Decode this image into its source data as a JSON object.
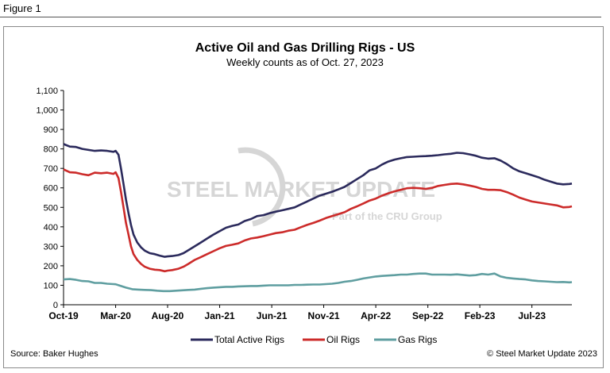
{
  "figure_label": "Figure  1",
  "source": "Source: Baker Hughes",
  "copyright": "© Steel Market Update 2023",
  "watermark": {
    "brand": "STEEL MARKET UPDATE",
    "tagline": "Part of the CRU Group"
  },
  "colors": {
    "total": "#2b2a5c",
    "oil": "#cc2b2a",
    "gas": "#5f9ea0",
    "axis": "#000000",
    "watermark": "#d6d6d6"
  },
  "chart_data": {
    "type": "line",
    "title": "Active Oil and Gas Drilling Rigs - US",
    "subtitle": "Weekly counts as of Oct. 27, 2023",
    "xlabel": "",
    "ylabel": "",
    "ylim": [
      0,
      1100
    ],
    "yticks": [
      0,
      100,
      200,
      300,
      400,
      500,
      600,
      700,
      800,
      900,
      1000,
      1100
    ],
    "ytick_labels": [
      "0",
      "100",
      "200",
      "300",
      "400",
      "500",
      "600",
      "700",
      "800",
      "900",
      "1,000",
      "1,100"
    ],
    "xlim": [
      2019.75,
      2023.82
    ],
    "xticks": [
      {
        "label": "Oct-19",
        "x": 2019.75
      },
      {
        "label": "Mar-20",
        "x": 2020.167
      },
      {
        "label": "Aug-20",
        "x": 2020.583
      },
      {
        "label": "Jan-21",
        "x": 2021.0
      },
      {
        "label": "Jun-21",
        "x": 2021.417
      },
      {
        "label": "Nov-21",
        "x": 2021.833
      },
      {
        "label": "Apr-22",
        "x": 2022.25
      },
      {
        "label": "Sep-22",
        "x": 2022.667
      },
      {
        "label": "Feb-23",
        "x": 2023.083
      },
      {
        "label": "Jul-23",
        "x": 2023.5
      }
    ],
    "grid": false,
    "legend": "bottom-center",
    "series": [
      {
        "name": "Total Active Rigs",
        "key": "total",
        "points": [
          [
            2019.75,
            825
          ],
          [
            2019.8,
            812
          ],
          [
            2019.85,
            810
          ],
          [
            2019.9,
            800
          ],
          [
            2019.95,
            795
          ],
          [
            2020.0,
            790
          ],
          [
            2020.05,
            792
          ],
          [
            2020.1,
            790
          ],
          [
            2020.15,
            785
          ],
          [
            2020.167,
            790
          ],
          [
            2020.19,
            770
          ],
          [
            2020.21,
            700
          ],
          [
            2020.23,
            620
          ],
          [
            2020.25,
            540
          ],
          [
            2020.27,
            470
          ],
          [
            2020.29,
            410
          ],
          [
            2020.31,
            360
          ],
          [
            2020.34,
            320
          ],
          [
            2020.37,
            295
          ],
          [
            2020.4,
            278
          ],
          [
            2020.44,
            265
          ],
          [
            2020.48,
            260
          ],
          [
            2020.52,
            252
          ],
          [
            2020.56,
            246
          ],
          [
            2020.583,
            248
          ],
          [
            2020.62,
            250
          ],
          [
            2020.67,
            255
          ],
          [
            2020.71,
            265
          ],
          [
            2020.75,
            280
          ],
          [
            2020.8,
            300
          ],
          [
            2020.85,
            320
          ],
          [
            2020.9,
            340
          ],
          [
            2020.95,
            360
          ],
          [
            2021.0,
            378
          ],
          [
            2021.05,
            395
          ],
          [
            2021.1,
            405
          ],
          [
            2021.15,
            412
          ],
          [
            2021.2,
            430
          ],
          [
            2021.25,
            440
          ],
          [
            2021.3,
            455
          ],
          [
            2021.35,
            460
          ],
          [
            2021.4,
            470
          ],
          [
            2021.45,
            478
          ],
          [
            2021.5,
            485
          ],
          [
            2021.55,
            492
          ],
          [
            2021.6,
            500
          ],
          [
            2021.65,
            515
          ],
          [
            2021.7,
            530
          ],
          [
            2021.75,
            545
          ],
          [
            2021.8,
            560
          ],
          [
            2021.85,
            570
          ],
          [
            2021.9,
            580
          ],
          [
            2021.95,
            592
          ],
          [
            2022.0,
            605
          ],
          [
            2022.05,
            625
          ],
          [
            2022.1,
            645
          ],
          [
            2022.15,
            665
          ],
          [
            2022.2,
            690
          ],
          [
            2022.25,
            700
          ],
          [
            2022.3,
            720
          ],
          [
            2022.35,
            735
          ],
          [
            2022.4,
            745
          ],
          [
            2022.45,
            752
          ],
          [
            2022.5,
            758
          ],
          [
            2022.55,
            760
          ],
          [
            2022.6,
            762
          ],
          [
            2022.65,
            763
          ],
          [
            2022.7,
            765
          ],
          [
            2022.75,
            768
          ],
          [
            2022.8,
            772
          ],
          [
            2022.85,
            775
          ],
          [
            2022.9,
            780
          ],
          [
            2022.95,
            778
          ],
          [
            2023.0,
            772
          ],
          [
            2023.05,
            765
          ],
          [
            2023.1,
            755
          ],
          [
            2023.15,
            750
          ],
          [
            2023.2,
            752
          ],
          [
            2023.25,
            740
          ],
          [
            2023.3,
            722
          ],
          [
            2023.35,
            700
          ],
          [
            2023.4,
            685
          ],
          [
            2023.45,
            675
          ],
          [
            2023.5,
            665
          ],
          [
            2023.55,
            655
          ],
          [
            2023.6,
            642
          ],
          [
            2023.65,
            632
          ],
          [
            2023.7,
            622
          ],
          [
            2023.75,
            618
          ],
          [
            2023.8,
            620
          ],
          [
            2023.82,
            622
          ]
        ]
      },
      {
        "name": "Oil Rigs",
        "key": "oil",
        "points": [
          [
            2019.75,
            695
          ],
          [
            2019.8,
            680
          ],
          [
            2019.85,
            678
          ],
          [
            2019.9,
            670
          ],
          [
            2019.95,
            665
          ],
          [
            2020.0,
            678
          ],
          [
            2020.05,
            675
          ],
          [
            2020.1,
            678
          ],
          [
            2020.15,
            672
          ],
          [
            2020.167,
            680
          ],
          [
            2020.19,
            650
          ],
          [
            2020.21,
            580
          ],
          [
            2020.23,
            500
          ],
          [
            2020.25,
            420
          ],
          [
            2020.27,
            360
          ],
          [
            2020.29,
            300
          ],
          [
            2020.31,
            260
          ],
          [
            2020.34,
            230
          ],
          [
            2020.37,
            210
          ],
          [
            2020.4,
            195
          ],
          [
            2020.44,
            185
          ],
          [
            2020.48,
            180
          ],
          [
            2020.52,
            178
          ],
          [
            2020.56,
            172
          ],
          [
            2020.583,
            175
          ],
          [
            2020.62,
            178
          ],
          [
            2020.67,
            185
          ],
          [
            2020.71,
            195
          ],
          [
            2020.75,
            210
          ],
          [
            2020.8,
            230
          ],
          [
            2020.85,
            245
          ],
          [
            2020.9,
            260
          ],
          [
            2020.95,
            275
          ],
          [
            2021.0,
            290
          ],
          [
            2021.05,
            302
          ],
          [
            2021.1,
            308
          ],
          [
            2021.15,
            315
          ],
          [
            2021.2,
            330
          ],
          [
            2021.25,
            340
          ],
          [
            2021.3,
            345
          ],
          [
            2021.35,
            352
          ],
          [
            2021.4,
            360
          ],
          [
            2021.45,
            368
          ],
          [
            2021.5,
            372
          ],
          [
            2021.55,
            380
          ],
          [
            2021.6,
            385
          ],
          [
            2021.65,
            398
          ],
          [
            2021.7,
            410
          ],
          [
            2021.75,
            420
          ],
          [
            2021.8,
            432
          ],
          [
            2021.85,
            445
          ],
          [
            2021.9,
            455
          ],
          [
            2021.95,
            465
          ],
          [
            2022.0,
            475
          ],
          [
            2022.05,
            492
          ],
          [
            2022.1,
            505
          ],
          [
            2022.15,
            520
          ],
          [
            2022.2,
            535
          ],
          [
            2022.25,
            545
          ],
          [
            2022.3,
            560
          ],
          [
            2022.35,
            572
          ],
          [
            2022.4,
            582
          ],
          [
            2022.45,
            590
          ],
          [
            2022.5,
            598
          ],
          [
            2022.55,
            600
          ],
          [
            2022.6,
            598
          ],
          [
            2022.65,
            595
          ],
          [
            2022.7,
            600
          ],
          [
            2022.75,
            610
          ],
          [
            2022.8,
            615
          ],
          [
            2022.85,
            620
          ],
          [
            2022.9,
            622
          ],
          [
            2022.95,
            618
          ],
          [
            2023.0,
            612
          ],
          [
            2023.05,
            605
          ],
          [
            2023.1,
            595
          ],
          [
            2023.15,
            590
          ],
          [
            2023.2,
            590
          ],
          [
            2023.25,
            588
          ],
          [
            2023.3,
            578
          ],
          [
            2023.35,
            565
          ],
          [
            2023.4,
            550
          ],
          [
            2023.45,
            540
          ],
          [
            2023.5,
            530
          ],
          [
            2023.55,
            525
          ],
          [
            2023.6,
            520
          ],
          [
            2023.65,
            515
          ],
          [
            2023.7,
            510
          ],
          [
            2023.75,
            500
          ],
          [
            2023.8,
            502
          ],
          [
            2023.82,
            505
          ]
        ]
      },
      {
        "name": "Gas Rigs",
        "key": "gas",
        "points": [
          [
            2019.75,
            130
          ],
          [
            2019.8,
            132
          ],
          [
            2019.85,
            128
          ],
          [
            2019.9,
            122
          ],
          [
            2019.95,
            120
          ],
          [
            2020.0,
            112
          ],
          [
            2020.05,
            112
          ],
          [
            2020.1,
            108
          ],
          [
            2020.15,
            106
          ],
          [
            2020.167,
            105
          ],
          [
            2020.2,
            98
          ],
          [
            2020.25,
            88
          ],
          [
            2020.3,
            80
          ],
          [
            2020.35,
            78
          ],
          [
            2020.4,
            76
          ],
          [
            2020.45,
            75
          ],
          [
            2020.5,
            72
          ],
          [
            2020.55,
            70
          ],
          [
            2020.6,
            70
          ],
          [
            2020.65,
            72
          ],
          [
            2020.7,
            74
          ],
          [
            2020.75,
            76
          ],
          [
            2020.8,
            78
          ],
          [
            2020.85,
            82
          ],
          [
            2020.9,
            85
          ],
          [
            2020.95,
            88
          ],
          [
            2021.0,
            90
          ],
          [
            2021.05,
            92
          ],
          [
            2021.1,
            92
          ],
          [
            2021.15,
            94
          ],
          [
            2021.2,
            95
          ],
          [
            2021.25,
            96
          ],
          [
            2021.3,
            96
          ],
          [
            2021.35,
            98
          ],
          [
            2021.4,
            100
          ],
          [
            2021.45,
            100
          ],
          [
            2021.5,
            100
          ],
          [
            2021.55,
            100
          ],
          [
            2021.6,
            102
          ],
          [
            2021.65,
            102
          ],
          [
            2021.7,
            103
          ],
          [
            2021.75,
            104
          ],
          [
            2021.8,
            104
          ],
          [
            2021.85,
            106
          ],
          [
            2021.9,
            108
          ],
          [
            2021.95,
            112
          ],
          [
            2022.0,
            118
          ],
          [
            2022.05,
            122
          ],
          [
            2022.1,
            128
          ],
          [
            2022.15,
            135
          ],
          [
            2022.2,
            140
          ],
          [
            2022.25,
            145
          ],
          [
            2022.3,
            148
          ],
          [
            2022.35,
            150
          ],
          [
            2022.4,
            152
          ],
          [
            2022.45,
            155
          ],
          [
            2022.5,
            155
          ],
          [
            2022.55,
            158
          ],
          [
            2022.6,
            160
          ],
          [
            2022.65,
            160
          ],
          [
            2022.7,
            155
          ],
          [
            2022.75,
            155
          ],
          [
            2022.8,
            155
          ],
          [
            2022.85,
            154
          ],
          [
            2022.9,
            156
          ],
          [
            2022.95,
            153
          ],
          [
            2023.0,
            150
          ],
          [
            2023.05,
            152
          ],
          [
            2023.1,
            158
          ],
          [
            2023.15,
            155
          ],
          [
            2023.2,
            160
          ],
          [
            2023.25,
            145
          ],
          [
            2023.3,
            138
          ],
          [
            2023.35,
            135
          ],
          [
            2023.4,
            132
          ],
          [
            2023.45,
            130
          ],
          [
            2023.5,
            125
          ],
          [
            2023.55,
            122
          ],
          [
            2023.6,
            120
          ],
          [
            2023.65,
            118
          ],
          [
            2023.7,
            116
          ],
          [
            2023.75,
            117
          ],
          [
            2023.8,
            115
          ],
          [
            2023.82,
            116
          ]
        ]
      }
    ]
  }
}
